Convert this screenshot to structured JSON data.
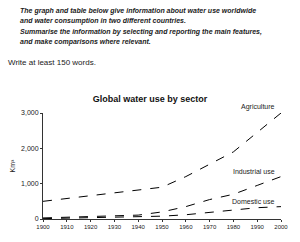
{
  "document": {
    "task_lines": [
      "The graph and table below give information about water use worldwide",
      "and water consumption in two different countries.",
      "Summarise the information by selecting and reporting the main features,",
      "and make comparisons where relevant."
    ],
    "prompt": "Write at least 150 words."
  },
  "chart_data": {
    "type": "line",
    "title": "Global water use by sector",
    "y_label": "Km³",
    "x": [
      1900,
      1910,
      1920,
      1930,
      1940,
      1950,
      1960,
      1970,
      1980,
      1990,
      2000
    ],
    "series": [
      {
        "name": "Agriculture",
        "color": "#000000",
        "line_style": "dash",
        "values": [
          500,
          580,
          650,
          720,
          800,
          900,
          1200,
          1550,
          1900,
          2450,
          3000
        ]
      },
      {
        "name": "Industrial use",
        "color": "#000000",
        "line_style": "dash",
        "values": [
          30,
          50,
          70,
          90,
          110,
          200,
          350,
          550,
          700,
          950,
          1200
        ]
      },
      {
        "name": "Domestic use",
        "color": "#000000",
        "line_style": "dash",
        "values": [
          10,
          20,
          30,
          40,
          50,
          80,
          120,
          180,
          250,
          320,
          350
        ]
      }
    ],
    "xlim": [
      1900,
      2000
    ],
    "xticks": [
      1900,
      1910,
      1920,
      1930,
      1940,
      1950,
      1960,
      1970,
      1980,
      1990,
      2000
    ],
    "ylim": [
      0,
      3000
    ],
    "yticks": [
      0,
      {
        "value": 1000,
        "label": "1,000"
      },
      {
        "value": 2000,
        "label": "2,000"
      },
      {
        "value": 3000,
        "label": "3,000"
      }
    ],
    "grid": false
  }
}
